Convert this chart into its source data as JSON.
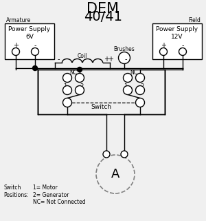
{
  "title_line1": "DEM",
  "title_line2": "40/41",
  "title_fontsize": 16,
  "bg_color": "#f0f0f0",
  "line_color": "black",
  "text_color": "black",
  "label_armature": "Armature",
  "label_field": "Field",
  "label_ps6v": "Power Supply\n6V",
  "label_ps12v": "Power Supply\n12V",
  "label_coil": "Coil",
  "label_brushes": "Brushes",
  "label_switch": "Switch",
  "label_switch_pos": "Switch\nPositions:",
  "label_positions_detail": "1= Motor\n2= Generator\nNC= Not Connected",
  "label_A": "A"
}
